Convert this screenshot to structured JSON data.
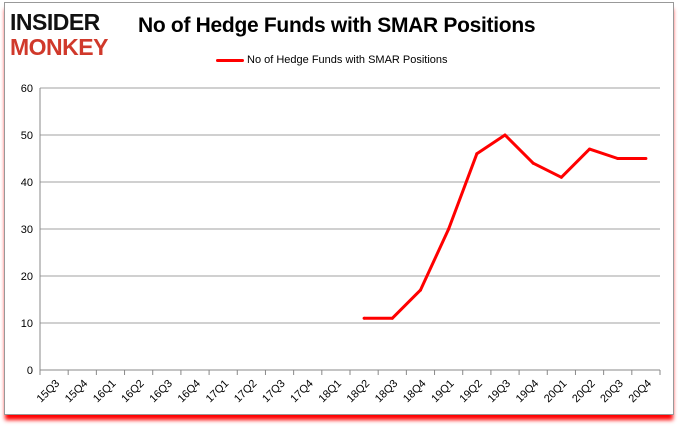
{
  "logo": {
    "line1": "INSIDER",
    "line2": "MONKEY"
  },
  "chart_data": {
    "type": "line",
    "title": "No of Hedge Funds with SMAR Positions",
    "categories": [
      "15Q3",
      "15Q4",
      "16Q1",
      "16Q2",
      "16Q3",
      "16Q4",
      "17Q1",
      "17Q2",
      "17Q3",
      "17Q4",
      "18Q1",
      "18Q2",
      "18Q3",
      "18Q4",
      "19Q1",
      "19Q2",
      "19Q3",
      "19Q4",
      "20Q1",
      "20Q2",
      "20Q3",
      "20Q4"
    ],
    "series": [
      {
        "name": "No of Hedge Funds with SMAR Positions",
        "color": "#ff0000",
        "values": [
          null,
          null,
          null,
          null,
          null,
          null,
          null,
          null,
          null,
          null,
          null,
          11,
          11,
          17,
          30,
          46,
          50,
          44,
          41,
          47,
          45,
          45
        ]
      }
    ],
    "ylim": [
      0,
      60
    ],
    "yticks": [
      0,
      10,
      20,
      30,
      40,
      50,
      60
    ],
    "grid": true,
    "legend": "top-center",
    "xlabel": "",
    "ylabel": ""
  }
}
